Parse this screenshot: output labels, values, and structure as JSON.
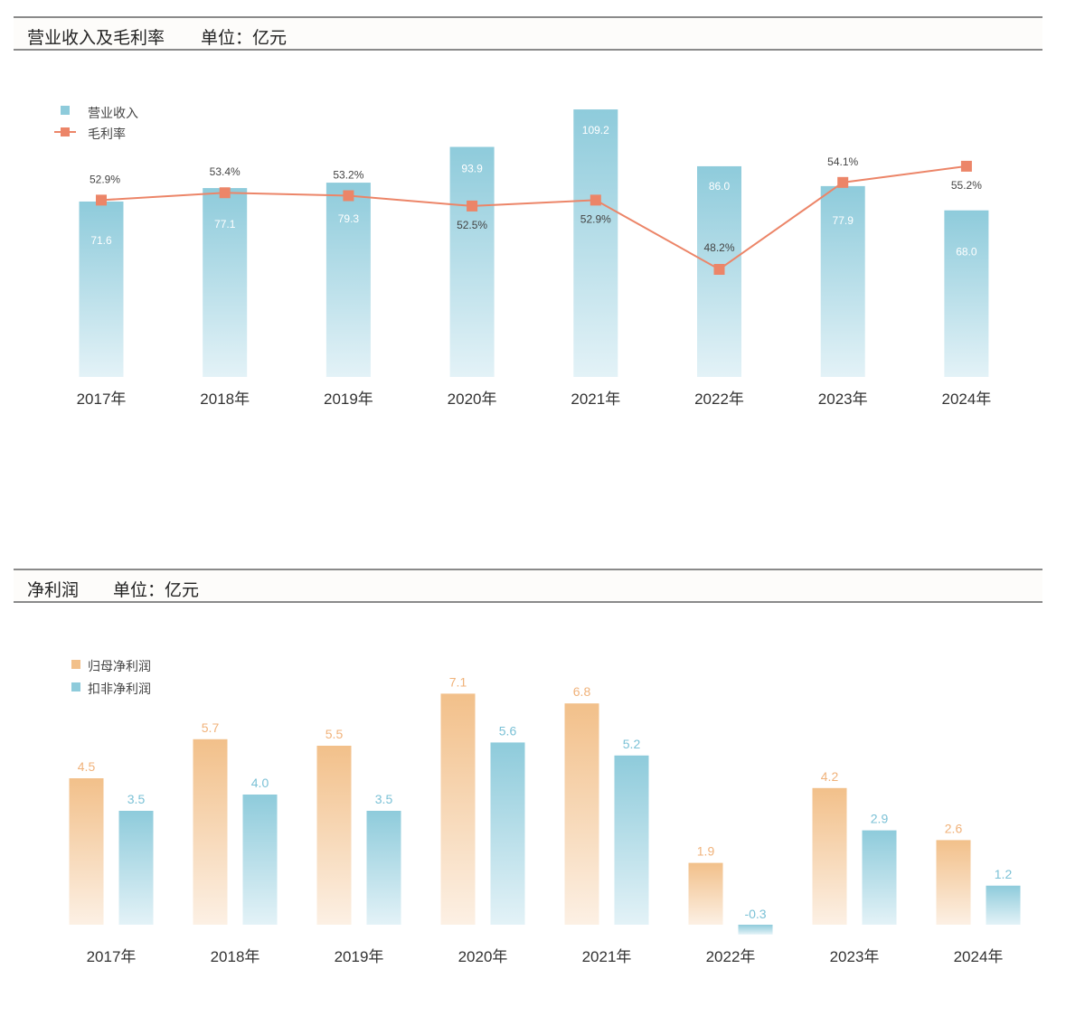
{
  "colors": {
    "revenue": "#8ecbdb",
    "margin": "#ec8568",
    "net_profit": "#f2c08a",
    "deducted_profit": "#8ecbdb",
    "header_border": "#8a8a8a"
  },
  "chart_data": [
    {
      "type": "bar",
      "title": "营业收入及毛利率",
      "unit": "单位：亿元",
      "categories": [
        "2017年",
        "2018年",
        "2019年",
        "2020年",
        "2021年",
        "2022年",
        "2023年",
        "2024年"
      ],
      "series": [
        {
          "name": "营业收入",
          "kind": "bar",
          "values": [
            71.6,
            77.1,
            79.3,
            93.9,
            109.2,
            86.0,
            77.9,
            68.0
          ],
          "labels": [
            "71.6",
            "77.1",
            "79.3",
            "93.9",
            "109.2",
            "86.0",
            "77.9",
            "68.0"
          ]
        },
        {
          "name": "毛利率",
          "kind": "line",
          "values": [
            52.9,
            53.4,
            53.2,
            52.5,
            52.9,
            48.2,
            54.1,
            55.2
          ],
          "labels": [
            "52.9%",
            "53.4%",
            "53.2%",
            "52.5%",
            "52.9%",
            "48.2%",
            "54.1%",
            "55.2%"
          ],
          "label_position": [
            "above",
            "above",
            "above",
            "below",
            "below",
            "above",
            "above",
            "below"
          ]
        }
      ],
      "legend": "top-left",
      "grid": false
    },
    {
      "type": "bar",
      "title": "净利润",
      "unit": "单位：亿元",
      "categories": [
        "2017年",
        "2018年",
        "2019年",
        "2020年",
        "2021年",
        "2022年",
        "2023年",
        "2024年"
      ],
      "series": [
        {
          "name": "归母净利润",
          "values": [
            4.5,
            5.7,
            5.5,
            7.1,
            6.8,
            1.9,
            4.2,
            2.6
          ],
          "labels": [
            "4.5",
            "5.7",
            "5.5",
            "7.1",
            "6.8",
            "1.9",
            "4.2",
            "2.6"
          ]
        },
        {
          "name": "扣非净利润",
          "values": [
            3.5,
            4.0,
            3.5,
            5.6,
            5.2,
            -0.3,
            2.9,
            1.2
          ],
          "labels": [
            "3.5",
            "4.0",
            "3.5",
            "5.6",
            "5.2",
            "-0.3",
            "2.9",
            "1.2"
          ]
        }
      ],
      "legend": "top-left",
      "grid": false
    }
  ]
}
